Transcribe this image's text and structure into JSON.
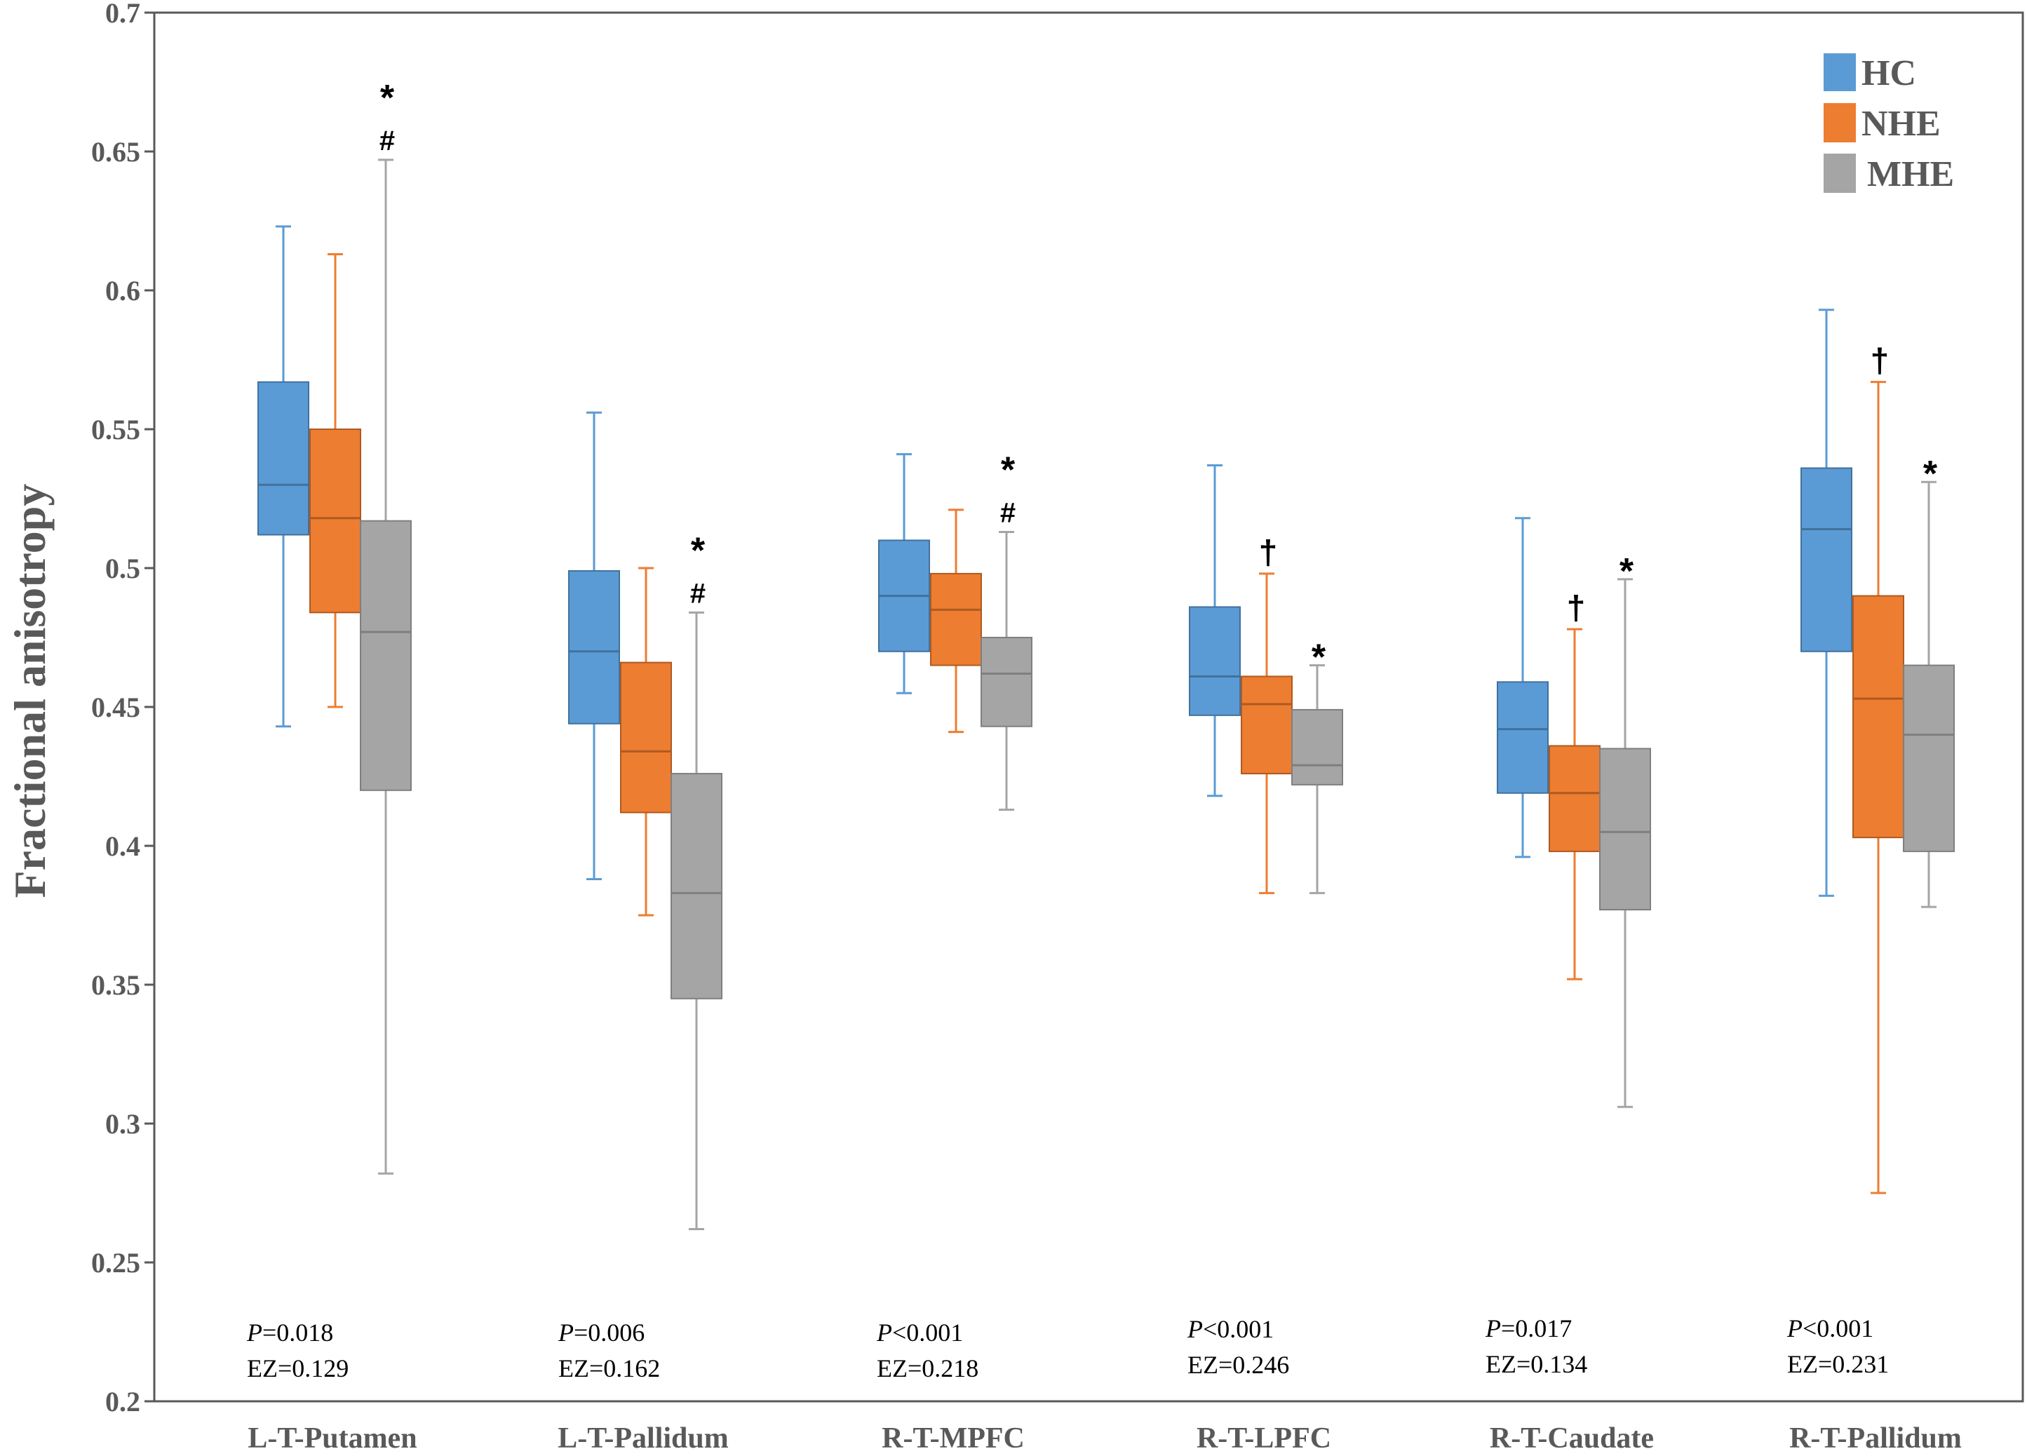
{
  "chart_data": {
    "type": "boxplot",
    "y_axis": {
      "title": "Fractional anisotropy",
      "min": 0.2,
      "max": 0.7,
      "ticks": [
        0.2,
        0.25,
        0.3,
        0.35,
        0.4,
        0.45,
        0.5,
        0.55,
        0.6,
        0.65,
        0.7
      ],
      "tick_labels": [
        "0.2",
        "0.25",
        "0.3",
        "0.35",
        "0.4",
        "0.45",
        "0.5",
        "0.55",
        "0.6",
        "0.65",
        "0.7"
      ]
    },
    "legend": {
      "placement": "top-right",
      "entries": [
        {
          "name": "HC",
          "color": "#5b9bd5",
          "edge": "#41719c"
        },
        {
          "name": "NHE",
          "color": "#ed7d31",
          "edge": "#ae5a21"
        },
        {
          "name": "MHE",
          "color": "#a5a5a5",
          "edge": "#7f7f7f"
        }
      ]
    },
    "categories": [
      {
        "label": "L-T-Putamen",
        "p_prefix": "P",
        "p_rest": "=0.018",
        "ez": "EZ=0.129",
        "boxes": [
          {
            "group": "HC",
            "min": 0.443,
            "q1": 0.512,
            "median": 0.53,
            "q3": 0.567,
            "max": 0.623,
            "markers": []
          },
          {
            "group": "NHE",
            "min": 0.45,
            "q1": 0.484,
            "median": 0.518,
            "q3": 0.55,
            "max": 0.613,
            "markers": []
          },
          {
            "group": "MHE",
            "min": 0.282,
            "q1": 0.42,
            "median": 0.477,
            "q3": 0.517,
            "max": 0.647,
            "markers": [
              "#",
              "*"
            ]
          }
        ]
      },
      {
        "label": "L-T-Pallidum",
        "p_prefix": "P",
        "p_rest": "=0.006",
        "ez": "EZ=0.162",
        "boxes": [
          {
            "group": "HC",
            "min": 0.388,
            "q1": 0.444,
            "median": 0.47,
            "q3": 0.499,
            "max": 0.556,
            "markers": []
          },
          {
            "group": "NHE",
            "min": 0.375,
            "q1": 0.412,
            "median": 0.434,
            "q3": 0.466,
            "max": 0.5,
            "markers": []
          },
          {
            "group": "MHE",
            "min": 0.262,
            "q1": 0.345,
            "median": 0.383,
            "q3": 0.426,
            "max": 0.484,
            "markers": [
              "#",
              "*"
            ]
          }
        ]
      },
      {
        "label": "R-T-MPFC",
        "p_prefix": "P",
        "p_rest": "<0.001",
        "ez": "EZ=0.218",
        "boxes": [
          {
            "group": "HC",
            "min": 0.455,
            "q1": 0.47,
            "median": 0.49,
            "q3": 0.51,
            "max": 0.541,
            "markers": []
          },
          {
            "group": "NHE",
            "min": 0.441,
            "q1": 0.465,
            "median": 0.485,
            "q3": 0.498,
            "max": 0.521,
            "markers": []
          },
          {
            "group": "MHE",
            "min": 0.413,
            "q1": 0.443,
            "median": 0.462,
            "q3": 0.475,
            "max": 0.513,
            "markers": [
              "#",
              "*"
            ]
          }
        ]
      },
      {
        "label": "R-T-LPFC",
        "p_prefix": "P",
        "p_rest": "<0.001",
        "ez": "EZ=0.246",
        "boxes": [
          {
            "group": "HC",
            "min": 0.418,
            "q1": 0.447,
            "median": 0.461,
            "q3": 0.486,
            "max": 0.537,
            "markers": []
          },
          {
            "group": "NHE",
            "min": 0.383,
            "q1": 0.426,
            "median": 0.451,
            "q3": 0.461,
            "max": 0.498,
            "markers": [
              "†"
            ]
          },
          {
            "group": "MHE",
            "min": 0.383,
            "q1": 0.422,
            "median": 0.429,
            "q3": 0.449,
            "max": 0.465,
            "markers": [
              "*"
            ]
          }
        ]
      },
      {
        "label": "R-T-Caudate",
        "p_prefix": "P",
        "p_rest": "=0.017",
        "ez": "EZ=0.134",
        "boxes": [
          {
            "group": "HC",
            "min": 0.396,
            "q1": 0.419,
            "median": 0.442,
            "q3": 0.459,
            "max": 0.518,
            "markers": []
          },
          {
            "group": "NHE",
            "min": 0.352,
            "q1": 0.398,
            "median": 0.419,
            "q3": 0.436,
            "max": 0.478,
            "markers": [
              "†"
            ]
          },
          {
            "group": "MHE",
            "min": 0.306,
            "q1": 0.377,
            "median": 0.405,
            "q3": 0.435,
            "max": 0.496,
            "markers": [
              "*"
            ]
          }
        ]
      },
      {
        "label": "R-T-Pallidum",
        "p_prefix": "P",
        "p_rest": "<0.001",
        "ez": "EZ=0.231",
        "boxes": [
          {
            "group": "HC",
            "min": 0.382,
            "q1": 0.47,
            "median": 0.514,
            "q3": 0.536,
            "max": 0.593,
            "markers": []
          },
          {
            "group": "NHE",
            "min": 0.275,
            "q1": 0.403,
            "median": 0.453,
            "q3": 0.49,
            "max": 0.567,
            "markers": [
              "†"
            ]
          },
          {
            "group": "MHE",
            "min": 0.378,
            "q1": 0.398,
            "median": 0.44,
            "q3": 0.465,
            "max": 0.531,
            "markers": [
              "*"
            ]
          }
        ]
      }
    ]
  }
}
